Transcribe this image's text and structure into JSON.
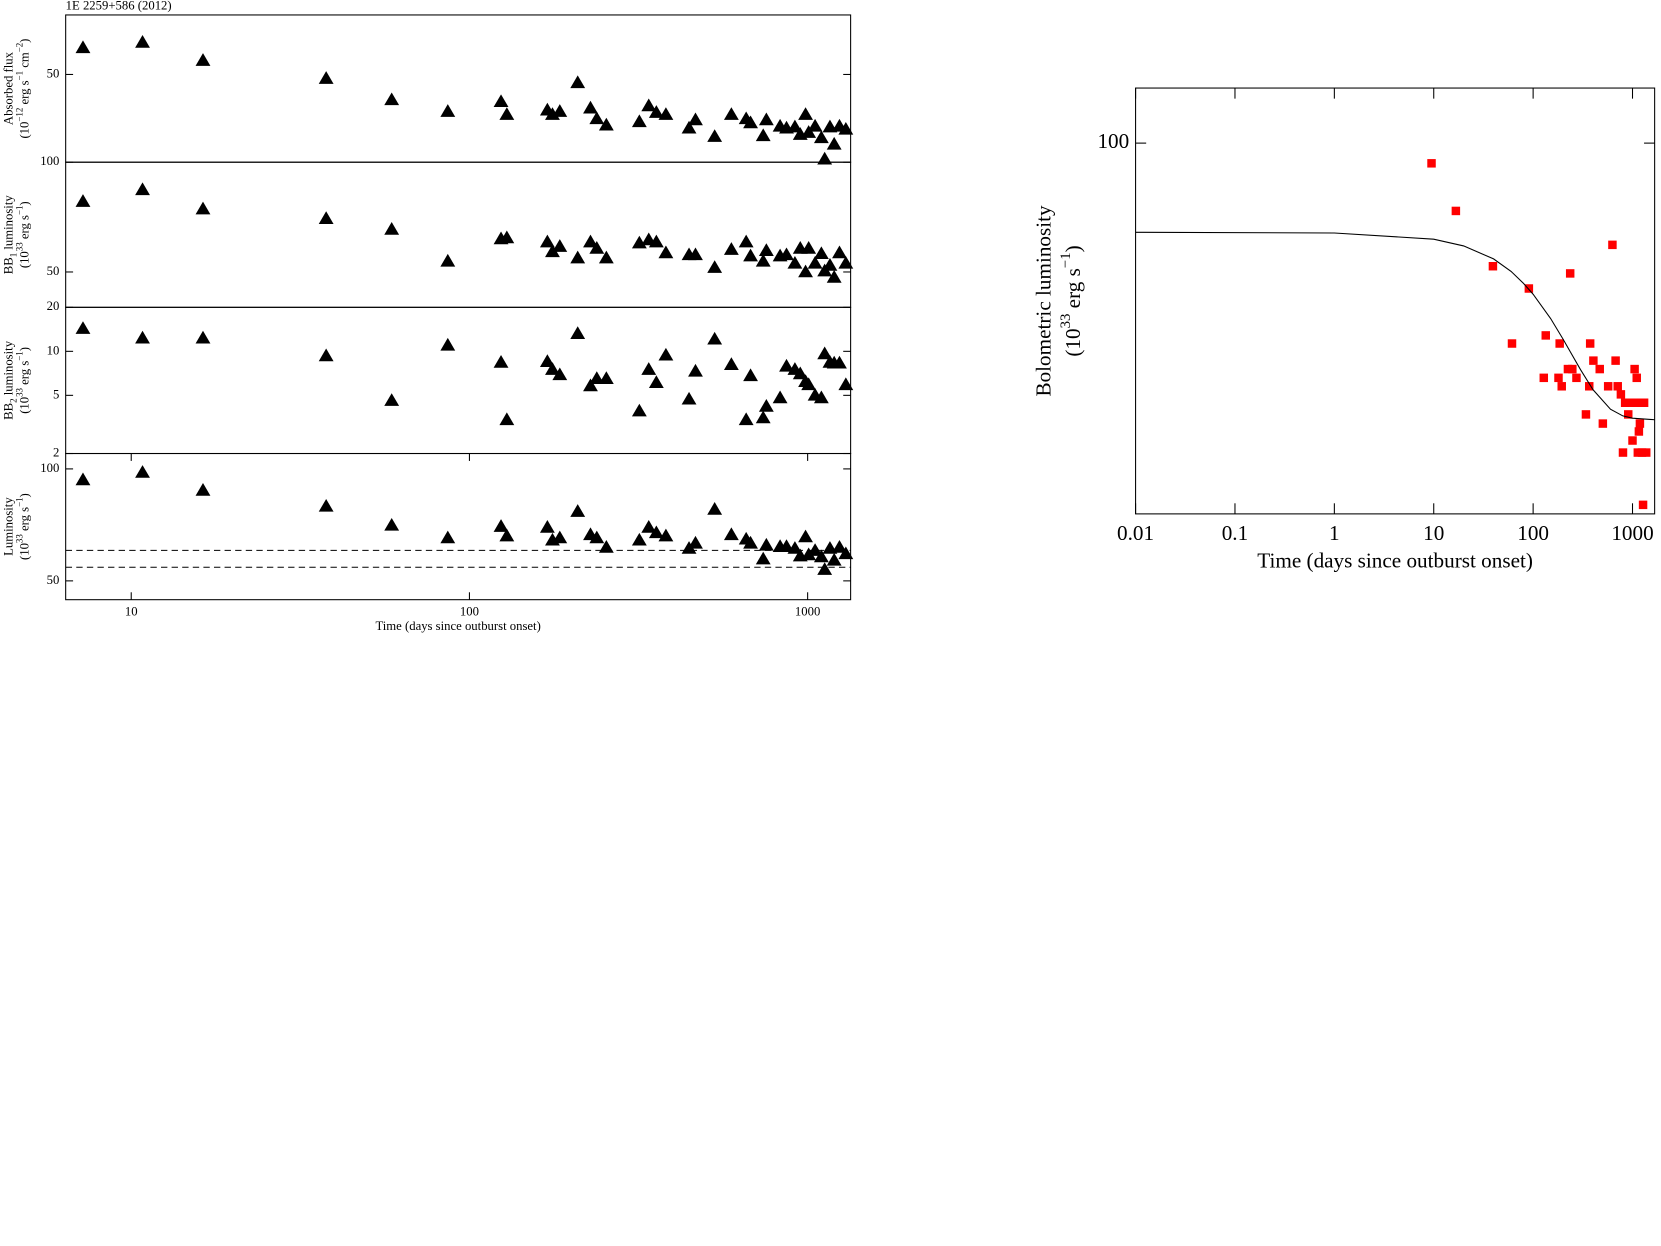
{
  "chart_data": [
    {
      "type": "scatter",
      "title": "1E 2259+586 (2012)",
      "xlog": true,
      "ylog": true,
      "xlim": [
        6.4,
        1340
      ],
      "ylim": [
        25,
        80
      ],
      "yticks": [
        50
      ],
      "ylabel": [
        [
          "Absorbed flux"
        ],
        [
          "(10",
          "−12",
          " erg s",
          "−1",
          " cm",
          "−2",
          ")"
        ]
      ],
      "x": [
        7.2,
        10.8,
        16.3,
        37.7,
        58.9,
        86.3,
        124,
        129,
        170,
        176,
        185,
        209,
        228,
        238,
        254,
        318,
        339,
        357,
        381,
        446,
        466,
        531,
        595,
        658,
        678,
        739,
        755,
        829,
        866,
        917,
        951,
        986,
        1007,
        1052,
        1098,
        1123,
        1164,
        1198,
        1242,
        1297
      ],
      "series": [
        {
          "color": "#000000",
          "marker": "triangle",
          "values": [
            61.7,
            64.4,
            55.8,
            48.4,
            40.9,
            37.3,
            40.3,
            36.4,
            37.7,
            36.4,
            37.3,
            46.8,
            38.3,
            35.2,
            33.5,
            34.4,
            39.0,
            37.0,
            36.4,
            32.7,
            34.9,
            30.6,
            36.4,
            35.2,
            34.1,
            30.8,
            34.9,
            33.2,
            32.7,
            33.0,
            31.1,
            36.4,
            31.6,
            33.2,
            30.3,
            25.6,
            33.0,
            28.8,
            33.2,
            32.4
          ]
        }
      ]
    },
    {
      "type": "scatter",
      "xlog": true,
      "ylog": true,
      "xlim": [
        6.4,
        1340
      ],
      "ylim": [
        40,
        100
      ],
      "yticks": [
        50,
        100
      ],
      "ylabel": [
        [
          "BB",
          "1",
          " luminosity"
        ],
        [
          "(10",
          "33",
          " erg s",
          "−1",
          ")"
        ]
      ],
      "x": [
        7.2,
        10.8,
        16.3,
        37.7,
        58.9,
        86.3,
        124,
        129,
        170,
        176,
        185,
        209,
        228,
        238,
        254,
        318,
        339,
        357,
        381,
        446,
        466,
        531,
        595,
        658,
        678,
        739,
        755,
        829,
        866,
        917,
        951,
        986,
        1007,
        1052,
        1098,
        1123,
        1164,
        1198,
        1242,
        1297
      ],
      "series": [
        {
          "color": "#000000",
          "marker": "triangle",
          "values": [
            78.0,
            84.0,
            74.4,
            70.0,
            65.4,
            53.5,
            61.6,
            62.0,
            60.4,
            56.8,
            58.7,
            54.6,
            60.4,
            58.0,
            54.6,
            60.0,
            61.2,
            60.4,
            56.4,
            55.7,
            55.7,
            51.4,
            57.6,
            60.4,
            55.3,
            53.5,
            57.2,
            55.3,
            55.7,
            52.8,
            58.0,
            50.0,
            58.0,
            52.8,
            56.1,
            50.3,
            52.1,
            48.3,
            56.4,
            52.8
          ]
        }
      ]
    },
    {
      "type": "scatter",
      "xlog": true,
      "ylog": true,
      "xlim": [
        6.4,
        1340
      ],
      "ylim": [
        2,
        20
      ],
      "yticks": [
        2,
        5,
        10,
        20
      ],
      "ylabel": [
        [
          "BB",
          "2",
          " luminosity"
        ],
        [
          "(10",
          "33",
          " erg s",
          "−1",
          ")"
        ]
      ],
      "x": [
        7.2,
        10.8,
        16.3,
        37.7,
        58.9,
        86.3,
        124,
        129,
        170,
        176,
        185,
        209,
        228,
        238,
        254,
        318,
        339,
        357,
        381,
        446,
        466,
        531,
        595,
        658,
        678,
        739,
        755,
        829,
        866,
        917,
        951,
        986,
        1007,
        1052,
        1098,
        1123,
        1164,
        1198,
        1242,
        1297
      ],
      "series": [
        {
          "color": "#000000",
          "marker": "triangle",
          "values": [
            14.3,
            12.3,
            12.3,
            9.3,
            4.6,
            11.0,
            8.4,
            3.4,
            8.5,
            7.5,
            6.9,
            13.2,
            5.8,
            6.5,
            6.5,
            3.9,
            7.5,
            6.1,
            9.4,
            4.7,
            7.3,
            12.1,
            8.1,
            3.4,
            6.8,
            3.5,
            4.2,
            4.8,
            7.9,
            7.5,
            7.0,
            6.2,
            5.9,
            5.0,
            4.8,
            9.6,
            8.4,
            8.3,
            8.3,
            5.9
          ]
        }
      ]
    },
    {
      "type": "scatter",
      "xlog": true,
      "ylog": true,
      "xlim": [
        6.4,
        1340
      ],
      "ylim": [
        44.5,
        110
      ],
      "yticks": [
        50,
        100
      ],
      "xticks": [
        10,
        100,
        1000
      ],
      "xlabel": "Time (days since outburst onset)",
      "ylabel": [
        [
          "Luminosity"
        ],
        [
          "(10",
          "33",
          " erg s",
          "−1",
          ")"
        ]
      ],
      "hlines": [
        60.4,
        54.4
      ],
      "hline_style": "dashed",
      "x": [
        7.2,
        10.8,
        16.3,
        37.7,
        58.9,
        86.3,
        124,
        129,
        170,
        176,
        185,
        209,
        228,
        238,
        254,
        318,
        339,
        357,
        381,
        446,
        466,
        531,
        595,
        658,
        678,
        739,
        755,
        829,
        866,
        917,
        951,
        986,
        1007,
        1052,
        1098,
        1123,
        1164,
        1198,
        1242,
        1297
      ],
      "series": [
        {
          "color": "#000000",
          "marker": "triangle",
          "values": [
            93.4,
            97.8,
            87.5,
            79.3,
            70.5,
            65.2,
            70.0,
            66.0,
            69.6,
            64.3,
            65.2,
            76.8,
            66.5,
            65.2,
            61.5,
            64.3,
            69.6,
            67.3,
            66.0,
            61.1,
            63.1,
            77.8,
            66.5,
            64.7,
            63.1,
            57.2,
            62.3,
            61.8,
            61.8,
            61.1,
            58.3,
            65.6,
            58.7,
            60.3,
            58.0,
            53.6,
            61.1,
            56.8,
            61.5,
            59.1
          ]
        }
      ]
    },
    {
      "type": "scatter",
      "xlog": true,
      "ylog": true,
      "xlim": [
        0.01,
        1670
      ],
      "ylim": [
        20,
        127
      ],
      "yticks": [
        100
      ],
      "xticks": [
        0.01,
        0.1,
        1,
        10,
        100,
        1000
      ],
      "xlabel": "Time (days since outburst onset)",
      "ylabel": [
        [
          "Bolometric luminosity"
        ],
        [
          "(10",
          "33",
          " erg s",
          "−1",
          ")"
        ]
      ],
      "x": [
        9.5,
        16.7,
        39.4,
        61.3,
        90.6,
        134,
        128,
        180,
        185,
        194,
        224,
        236,
        248,
        273,
        340,
        367,
        375,
        404,
        468,
        503,
        569,
        628,
        676,
        710,
        764,
        802,
        843,
        906,
        952,
        1000,
        1050,
        1076,
        1103,
        1131,
        1159,
        1187,
        1216,
        1246,
        1277,
        1308,
        1374
      ],
      "series": [
        {
          "color": "#ff0000",
          "marker": "square",
          "values": [
            91.6,
            74.5,
            58.6,
            41.9,
            53.2,
            43.4,
            36.1,
            36.1,
            41.9,
            34.8,
            37.5,
            56.8,
            37.5,
            36.1,
            30.8,
            34.8,
            41.9,
            38.9,
            37.5,
            29.6,
            34.8,
            64.3,
            38.9,
            34.8,
            33.6,
            26.1,
            32.4,
            30.8,
            32.4,
            27.5,
            37.5,
            32.4,
            36.1,
            26.1,
            28.6,
            29.6,
            32.4,
            26.1,
            20.8,
            32.4,
            26.1
          ]
        },
        {
          "color": "#000000",
          "kind": "line",
          "x": [
            0.01,
            1,
            10,
            20,
            40,
            60,
            80,
            100,
            150,
            200,
            300,
            400,
            600,
            800,
            1000,
            1670
          ],
          "values": [
            67.9,
            67.7,
            65.9,
            64.0,
            60.5,
            57.3,
            54.4,
            51.9,
            46.7,
            42.7,
            37.4,
            34.3,
            31.5,
            30.6,
            30.3,
            30.1
          ]
        }
      ]
    }
  ]
}
